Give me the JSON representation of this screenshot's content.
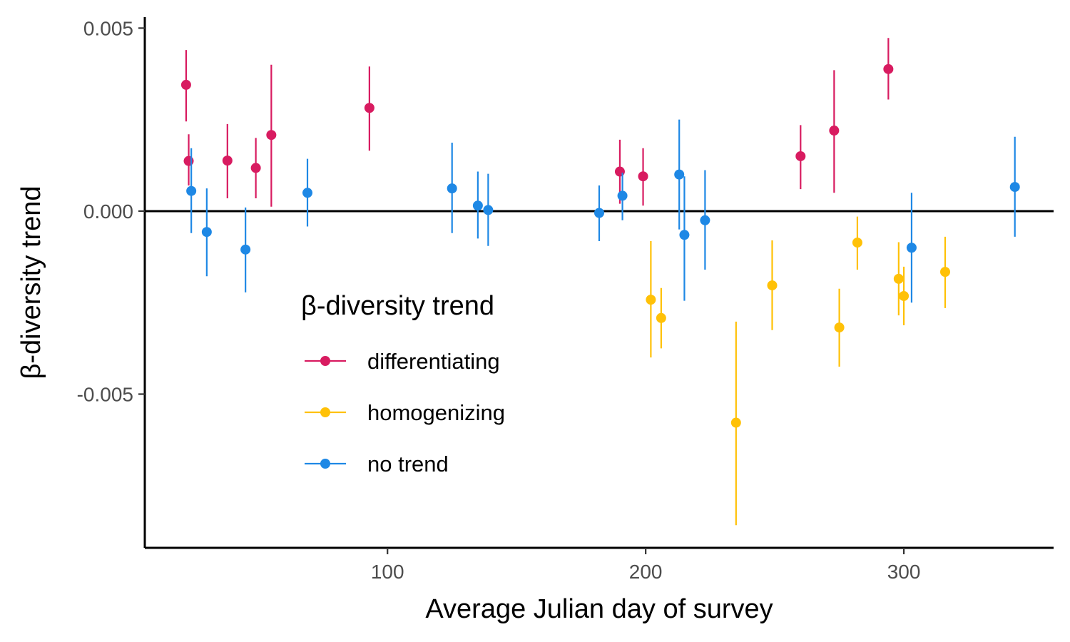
{
  "chart_data": {
    "type": "scatter",
    "title": "",
    "xlabel": "Average Julian day of survey",
    "ylabel": "β-diversity trend",
    "xlim": [
      6,
      358
    ],
    "ylim": [
      -0.0092,
      0.0053
    ],
    "x_ticks": [
      100,
      200,
      300
    ],
    "y_ticks": [
      0.005,
      0.0,
      -0.005
    ],
    "x_tick_labels": [
      "100",
      "200",
      "300"
    ],
    "y_tick_labels": [
      "0.005",
      "0.000",
      "-0.005"
    ],
    "reference_line_y": 0,
    "grid": false,
    "legend": {
      "title": "β-diversity trend",
      "placement": "inside-bottom-left"
    },
    "series": [
      {
        "name": "differentiating",
        "color": "#d81b60",
        "points": [
          {
            "x": 22,
            "y": 0.00345,
            "ymin": 0.00245,
            "ymax": 0.0044
          },
          {
            "x": 23,
            "y": 0.00137,
            "ymin": 0.0007,
            "ymax": 0.0021
          },
          {
            "x": 38,
            "y": 0.00138,
            "ymin": 0.00035,
            "ymax": 0.00238
          },
          {
            "x": 49,
            "y": 0.00118,
            "ymin": 0.00035,
            "ymax": 0.002
          },
          {
            "x": 55,
            "y": 0.00208,
            "ymin": 0.00012,
            "ymax": 0.004
          },
          {
            "x": 93,
            "y": 0.00282,
            "ymin": 0.00165,
            "ymax": 0.00395
          },
          {
            "x": 190,
            "y": 0.00108,
            "ymin": 0.0002,
            "ymax": 0.00195
          },
          {
            "x": 199,
            "y": 0.00095,
            "ymin": 0.00015,
            "ymax": 0.00172
          },
          {
            "x": 260,
            "y": 0.0015,
            "ymin": 0.0006,
            "ymax": 0.00235
          },
          {
            "x": 273,
            "y": 0.0022,
            "ymin": 0.0005,
            "ymax": 0.00385
          },
          {
            "x": 294,
            "y": 0.00388,
            "ymin": 0.00305,
            "ymax": 0.00473
          }
        ]
      },
      {
        "name": "homogenizing",
        "color": "#ffc107",
        "points": [
          {
            "x": 202,
            "y": -0.00242,
            "ymin": -0.004,
            "ymax": -0.00082
          },
          {
            "x": 206,
            "y": -0.00292,
            "ymin": -0.00375,
            "ymax": -0.0021
          },
          {
            "x": 235,
            "y": -0.00578,
            "ymin": -0.00858,
            "ymax": -0.00302
          },
          {
            "x": 249,
            "y": -0.00203,
            "ymin": -0.00325,
            "ymax": -0.0008
          },
          {
            "x": 275,
            "y": -0.00318,
            "ymin": -0.00425,
            "ymax": -0.00212
          },
          {
            "x": 282,
            "y": -0.00086,
            "ymin": -0.0016,
            "ymax": -0.00015
          },
          {
            "x": 298,
            "y": -0.00185,
            "ymin": -0.00285,
            "ymax": -0.00085
          },
          {
            "x": 300,
            "y": -0.00232,
            "ymin": -0.00312,
            "ymax": -0.00152
          },
          {
            "x": 316,
            "y": -0.00166,
            "ymin": -0.00265,
            "ymax": -0.0007
          }
        ]
      },
      {
        "name": "no trend",
        "color": "#1e88e5",
        "points": [
          {
            "x": 24,
            "y": 0.00055,
            "ymin": -0.0006,
            "ymax": 0.00172
          },
          {
            "x": 30,
            "y": -0.00057,
            "ymin": -0.00178,
            "ymax": 0.00062
          },
          {
            "x": 45,
            "y": -0.00105,
            "ymin": -0.00222,
            "ymax": 0.0001
          },
          {
            "x": 69,
            "y": 0.0005,
            "ymin": -0.00042,
            "ymax": 0.00143
          },
          {
            "x": 125,
            "y": 0.00062,
            "ymin": -0.0006,
            "ymax": 0.00187
          },
          {
            "x": 135,
            "y": 0.00015,
            "ymin": -0.00075,
            "ymax": 0.00108
          },
          {
            "x": 139,
            "y": 3e-05,
            "ymin": -0.00095,
            "ymax": 0.00102
          },
          {
            "x": 182,
            "y": -5e-05,
            "ymin": -0.00082,
            "ymax": 0.0007
          },
          {
            "x": 191,
            "y": 0.00042,
            "ymin": -0.00025,
            "ymax": 0.00105
          },
          {
            "x": 213,
            "y": 0.001,
            "ymin": -0.0005,
            "ymax": 0.0025
          },
          {
            "x": 215,
            "y": -0.00065,
            "ymin": -0.00245,
            "ymax": 0.00095
          },
          {
            "x": 223,
            "y": -0.00025,
            "ymin": -0.0016,
            "ymax": 0.00112
          },
          {
            "x": 303,
            "y": -0.001,
            "ymin": -0.0025,
            "ymax": 0.0005
          },
          {
            "x": 343,
            "y": 0.00066,
            "ymin": -0.0007,
            "ymax": 0.00203
          }
        ]
      }
    ]
  }
}
